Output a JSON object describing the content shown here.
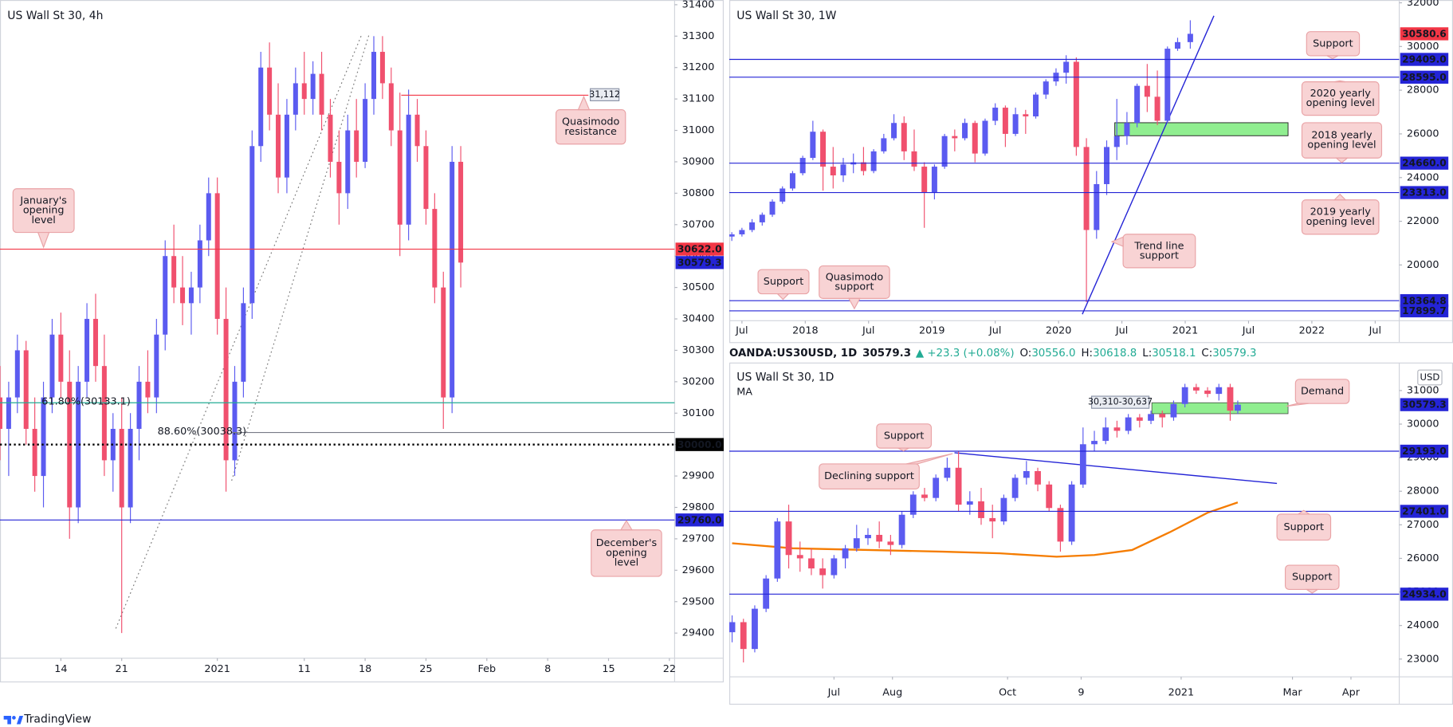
{
  "chart_data": [
    {
      "type": "candlestick",
      "title": "US Wall St 30, 4h",
      "x": [
        -7,
        -6,
        -5,
        -4,
        -3,
        -2,
        -1,
        0,
        1,
        2,
        3,
        4,
        5,
        6,
        7,
        8,
        9,
        10,
        11,
        12,
        13,
        14,
        15,
        16,
        17,
        18,
        19,
        20,
        21,
        22,
        23,
        24,
        25,
        26,
        27,
        28,
        29,
        30,
        31,
        32,
        33,
        34,
        35,
        36,
        37,
        38,
        39,
        40,
        41,
        42,
        43,
        44,
        45,
        46
      ],
      "open": [
        30150,
        30050,
        30150,
        30300,
        30050,
        29900,
        30150,
        30350,
        30200,
        29800,
        30200,
        30400,
        30250,
        29950,
        30050,
        29800,
        30050,
        30200,
        30150,
        30350,
        30600,
        30500,
        30450,
        30500,
        30650,
        30800,
        30400,
        29950,
        30200,
        30450,
        30950,
        31200,
        31050,
        30850,
        31050,
        31150,
        31100,
        31180,
        31050,
        30900,
        30800,
        31000,
        30900,
        31100,
        31250,
        31150,
        31000,
        30700,
        31050,
        30950,
        30750,
        30500,
        30150,
        30900
      ],
      "high": [
        30250,
        30200,
        30350,
        30330,
        30150,
        30200,
        30400,
        30420,
        30300,
        30250,
        30450,
        30480,
        30350,
        30100,
        30150,
        30100,
        30250,
        30300,
        30400,
        30650,
        30700,
        30600,
        30550,
        30700,
        30850,
        30850,
        30500,
        30250,
        30500,
        31000,
        31250,
        31280,
        31150,
        31100,
        31200,
        31250,
        31220,
        31250,
        31100,
        31000,
        31050,
        31100,
        31150,
        31300,
        31300,
        31200,
        31120,
        31130,
        31100,
        31000,
        30800,
        30550,
        30950,
        30950
      ],
      "low": [
        29950,
        29900,
        30100,
        30000,
        29850,
        29800,
        30100,
        30150,
        29700,
        29750,
        30150,
        30200,
        29900,
        29850,
        29400,
        29750,
        29950,
        30100,
        30100,
        30300,
        30450,
        30380,
        30350,
        30450,
        30600,
        30350,
        29850,
        29900,
        30150,
        30400,
        30900,
        31000,
        30800,
        30800,
        31000,
        31050,
        31050,
        31000,
        30850,
        30700,
        30750,
        30850,
        30880,
        31050,
        31100,
        30950,
        30600,
        30650,
        30900,
        30700,
        30450,
        30050,
        30100,
        30500
      ],
      "close": [
        30050,
        30150,
        30300,
        30050,
        29900,
        30150,
        30350,
        30200,
        29800,
        30200,
        30400,
        30250,
        29950,
        30050,
        29800,
        30050,
        30200,
        30150,
        30350,
        30600,
        30500,
        30450,
        30500,
        30650,
        30800,
        30400,
        29950,
        30200,
        30450,
        30950,
        31200,
        31050,
        30850,
        31050,
        31150,
        31100,
        31180,
        31050,
        30900,
        30800,
        31000,
        30900,
        31100,
        31250,
        31150,
        31000,
        30700,
        31050,
        30950,
        30750,
        30500,
        30150,
        30900,
        30579.3
      ],
      "up_color": "#5b5bf0",
      "down_color": "#f0506e",
      "xlim": [
        -7,
        70.6
      ],
      "xticks": [
        {
          "value": 0,
          "label": "14"
        },
        {
          "value": 7,
          "label": "21"
        },
        {
          "value": 18,
          "label": "2021"
        },
        {
          "value": 28,
          "label": "11"
        },
        {
          "value": 35,
          "label": "18"
        },
        {
          "value": 42,
          "label": "25"
        },
        {
          "value": 49,
          "label": "Feb"
        },
        {
          "value": 56,
          "label": "8"
        },
        {
          "value": 63,
          "label": "15"
        },
        {
          "value": 70,
          "label": "22"
        }
      ],
      "ylim": [
        29320,
        31415
      ],
      "yticks": [
        29400,
        29500,
        29600,
        29700,
        29800,
        29900,
        30000,
        30100,
        30200,
        30300,
        30400,
        30500,
        30600,
        30700,
        30800,
        30900,
        31000,
        31100,
        31200,
        31300,
        31400
      ],
      "levels": [
        {
          "value": 30622,
          "label": "30622.0",
          "color": "#f23645",
          "line": "solid"
        },
        {
          "value": 30579.3,
          "label": "30579.3",
          "color": "#2424d6",
          "line": "none"
        },
        {
          "value": 30000,
          "label": "30000.0",
          "color": "#000000",
          "line": "dotted"
        },
        {
          "value": 29760,
          "label": "29760.0",
          "color": "#2424d6",
          "line": "solid"
        }
      ],
      "fib_levels": [
        {
          "value": 30133.1,
          "label": "61.80%(30133.1)",
          "color": "#22ab94"
        },
        {
          "value": 30038.3,
          "label": "88.60%(30038.3)",
          "color": "#787b86"
        }
      ],
      "resistance_line": {
        "value": 31112,
        "label": "31,112",
        "color": "#f23645"
      },
      "annotations": [
        {
          "lines": [
            "Quasimodo",
            "resistance"
          ]
        },
        {
          "lines": [
            "January's",
            "opening",
            "level"
          ]
        },
        {
          "lines": [
            "December's",
            "opening",
            "level"
          ]
        }
      ]
    },
    {
      "type": "candlestick",
      "title": "US Wall St 30, 1W",
      "x": [
        2017.42,
        2017.5,
        2017.58,
        2017.66,
        2017.74,
        2017.82,
        2017.9,
        2017.98,
        2018.06,
        2018.14,
        2018.22,
        2018.3,
        2018.38,
        2018.46,
        2018.54,
        2018.62,
        2018.7,
        2018.78,
        2018.86,
        2018.94,
        2019.02,
        2019.1,
        2019.18,
        2019.26,
        2019.34,
        2019.42,
        2019.5,
        2019.58,
        2019.66,
        2019.74,
        2019.82,
        2019.9,
        2019.98,
        2020.06,
        2020.14,
        2020.22,
        2020.3,
        2020.38,
        2020.46,
        2020.54,
        2020.62,
        2020.7,
        2020.78,
        2020.86,
        2020.94,
        2021.04
      ],
      "open": [
        21300,
        21400,
        21600,
        21950,
        22300,
        22900,
        23500,
        24200,
        24900,
        26100,
        24500,
        24100,
        24600,
        24700,
        24300,
        25200,
        25800,
        26500,
        25200,
        24500,
        23300,
        24500,
        25900,
        25800,
        26500,
        25100,
        26600,
        27200,
        26000,
        26900,
        26800,
        27800,
        28400,
        28800,
        29300,
        25400,
        21600,
        23700,
        25400,
        25900,
        26500,
        28200,
        27700,
        26600,
        29900,
        30200
      ],
      "high": [
        21500,
        21700,
        22100,
        22400,
        23000,
        23600,
        24300,
        25000,
        26600,
        26200,
        25400,
        24900,
        25100,
        25400,
        25300,
        26000,
        26900,
        26800,
        26200,
        24700,
        24600,
        26000,
        26200,
        26700,
        26600,
        26700,
        27400,
        27300,
        27200,
        27100,
        27900,
        28500,
        29000,
        29600,
        29500,
        25800,
        24300,
        25700,
        27600,
        27000,
        28300,
        29200,
        28900,
        30000,
        30400,
        31200
      ],
      "low": [
        21100,
        21300,
        21500,
        21800,
        22200,
        22800,
        23400,
        24100,
        24800,
        23400,
        23500,
        23800,
        24200,
        24100,
        24200,
        25100,
        25700,
        24800,
        24300,
        21700,
        23000,
        24400,
        25200,
        25700,
        24700,
        25000,
        26400,
        25400,
        25900,
        26000,
        26700,
        27600,
        28200,
        28300,
        25000,
        18300,
        21200,
        23200,
        24800,
        25500,
        26300,
        27000,
        26400,
        26500,
        29800,
        29900
      ],
      "close": [
        21400,
        21600,
        21950,
        22300,
        22900,
        23500,
        24200,
        24900,
        26100,
        24500,
        24100,
        24600,
        24700,
        24300,
        25200,
        25800,
        26500,
        25200,
        24500,
        23300,
        24500,
        25900,
        25800,
        26500,
        25100,
        26600,
        27200,
        26000,
        26900,
        26800,
        27800,
        28400,
        28800,
        29300,
        25400,
        21600,
        23700,
        25400,
        25900,
        26500,
        28200,
        27700,
        26600,
        29900,
        30200,
        30580.6
      ],
      "up_color": "#5b5bf0",
      "down_color": "#f0506e",
      "xlim": [
        2017.4,
        2022.69
      ],
      "xticks": [
        {
          "value": 2017.5,
          "label": "Jul"
        },
        2018,
        {
          "value": 2018.5,
          "label": "Jul"
        },
        2019,
        {
          "value": 2019.5,
          "label": "Jul"
        },
        2020,
        {
          "value": 2020.5,
          "label": "Jul"
        },
        2021,
        {
          "value": 2021.5,
          "label": "Jul"
        },
        2022,
        {
          "value": 2022.5,
          "label": "Jul"
        }
      ],
      "ylim": [
        17447,
        32128
      ],
      "yticks": [
        20000,
        22000,
        24000,
        26000,
        28000,
        30000,
        32000
      ],
      "levels": [
        {
          "value": 30580.6,
          "label": "30580.6",
          "color": "#f23645",
          "line": "none"
        },
        {
          "value": 29409,
          "label": "29409.0",
          "color": "#2424d6",
          "line": "solid"
        },
        {
          "value": 28595,
          "label": "28595.0",
          "color": "#2424d6",
          "line": "solid"
        },
        {
          "value": 24660,
          "label": "24660.0",
          "color": "#2424d6",
          "line": "solid"
        },
        {
          "value": 23313,
          "label": "23313.0",
          "color": "#2424d6",
          "line": "solid"
        },
        {
          "value": 18364.8,
          "label": "18364.8",
          "color": "#2424d6",
          "line": "solid"
        },
        {
          "value": 17899.7,
          "label": "17899.7",
          "color": "#2424d6",
          "line": "solid"
        }
      ],
      "annotations": [
        {
          "lines": [
            "Support"
          ]
        },
        {
          "lines": [
            "2020 yearly",
            "opening level"
          ]
        },
        {
          "lines": [
            "2018 yearly",
            "opening level"
          ]
        },
        {
          "lines": [
            "2019 yearly",
            "opening level"
          ]
        },
        {
          "lines": [
            "Trend line",
            "support"
          ]
        },
        {
          "lines": [
            "Support"
          ]
        },
        {
          "lines": [
            "Quasimodo",
            "support"
          ]
        }
      ]
    },
    {
      "type": "candlestick",
      "title": "US Wall St 30, 1D",
      "header": {
        "symbol": "OANDA:US30USD, 1D",
        "last": "30579.3",
        "change": "▲ +23.3 (+0.08%)",
        "ohlc": [
          {
            "label": "O:",
            "value": "30556.0"
          },
          {
            "label": "H:",
            "value": "30618.8"
          },
          {
            "label": "L:",
            "value": "30518.1"
          },
          {
            "label": "C:",
            "value": "30579.3"
          }
        ]
      },
      "currency": "USD",
      "x": [
        128,
        134,
        140,
        146,
        152,
        158,
        164,
        170,
        176,
        182,
        188,
        194,
        200,
        206,
        212,
        218,
        224,
        230,
        236,
        242,
        248,
        254,
        260,
        266,
        272,
        278,
        284,
        290,
        296,
        302,
        308,
        314,
        320,
        326,
        332,
        338,
        344,
        350,
        356,
        362,
        368,
        374,
        380,
        386,
        392,
        396
      ],
      "open": [
        23800,
        24100,
        23300,
        24500,
        25400,
        27100,
        26100,
        26000,
        25700,
        25500,
        26000,
        26300,
        26600,
        26700,
        26500,
        26400,
        27300,
        27900,
        27800,
        28400,
        28700,
        27600,
        27700,
        27200,
        27100,
        27800,
        28400,
        28600,
        28200,
        27500,
        26500,
        28200,
        29400,
        29500,
        29900,
        29800,
        30200,
        30100,
        30300,
        30200,
        30600,
        31100,
        31000,
        30900,
        31100,
        30400
      ],
      "high": [
        24300,
        24200,
        24600,
        25500,
        27200,
        27600,
        26500,
        26300,
        26000,
        26100,
        26400,
        27000,
        26900,
        27100,
        26700,
        27400,
        28000,
        28100,
        28500,
        29000,
        29200,
        28000,
        28100,
        27600,
        27900,
        28500,
        28900,
        28700,
        28300,
        27600,
        28300,
        29900,
        29800,
        30200,
        30100,
        30300,
        30300,
        30400,
        30400,
        30700,
        31200,
        31200,
        31100,
        31200,
        31200,
        30700
      ],
      "low": [
        23500,
        22900,
        23200,
        24400,
        25300,
        25700,
        25600,
        25500,
        25100,
        25400,
        25700,
        26200,
        26400,
        26300,
        26100,
        26300,
        27200,
        27700,
        27700,
        28300,
        27400,
        27300,
        27000,
        26600,
        27000,
        27700,
        28200,
        28000,
        27400,
        26200,
        26400,
        28100,
        29200,
        29400,
        29600,
        29700,
        29900,
        30000,
        29900,
        30100,
        30500,
        30900,
        30800,
        30700,
        30100,
        30300
      ],
      "close": [
        24100,
        23300,
        24500,
        25400,
        27100,
        26100,
        26000,
        25700,
        25500,
        26000,
        26300,
        26600,
        26700,
        26500,
        26400,
        27300,
        27900,
        27800,
        28400,
        28700,
        27600,
        27700,
        27200,
        27100,
        27800,
        28400,
        28600,
        28200,
        27500,
        26500,
        28200,
        29400,
        29500,
        29900,
        29800,
        30200,
        30100,
        30300,
        30200,
        30600,
        31100,
        31000,
        30900,
        31100,
        30400,
        30579.3
      ],
      "up_color": "#5b5bf0",
      "down_color": "#f0506e",
      "indicator": {
        "name": "MA",
        "color": "#f57c00",
        "x": [
          128,
          160,
          200,
          240,
          270,
          300,
          320,
          340,
          360,
          380,
          396
        ],
        "values": [
          26450,
          26300,
          26250,
          26200,
          26150,
          26050,
          26100,
          26250,
          26780,
          27360,
          27667
        ]
      },
      "xlim": [
        126.5,
        481.6
      ],
      "xticks": [
        {
          "value": 182,
          "label": "Jul"
        },
        {
          "value": 213,
          "label": "Aug"
        },
        {
          "value": 274,
          "label": "Oct"
        },
        {
          "value": 313,
          "label": "9"
        },
        {
          "value": 366,
          "label": "2021"
        },
        {
          "value": 425,
          "label": "Mar"
        },
        {
          "value": 456,
          "label": "Apr"
        }
      ],
      "ylim": [
        22472,
        31833
      ],
      "yticks": [
        23000,
        24000,
        25000,
        26000,
        27000,
        28000,
        29000,
        30000,
        31000
      ],
      "levels": [
        {
          "value": 30579.3,
          "label": "30579.3",
          "color": "#2424d6",
          "line": "none"
        },
        {
          "value": 29193,
          "label": "29193.0",
          "color": "#2424d6",
          "line": "solid"
        },
        {
          "value": 27401,
          "label": "27401.0",
          "color": "#2424d6",
          "line": "solid"
        },
        {
          "value": 24934,
          "label": "24934.0",
          "color": "#2424d6",
          "line": "solid"
        }
      ],
      "zone": {
        "low": 30310,
        "high": 30637,
        "label": "30,310-30,637",
        "color": "#90ee90"
      },
      "annotations": [
        {
          "lines": [
            "Support"
          ]
        },
        {
          "lines": [
            "Declining support"
          ]
        },
        {
          "lines": [
            "Demand"
          ]
        },
        {
          "lines": [
            "Support"
          ]
        },
        {
          "lines": [
            "Support"
          ]
        }
      ]
    }
  ],
  "footer": {
    "brand": "TradingView"
  }
}
